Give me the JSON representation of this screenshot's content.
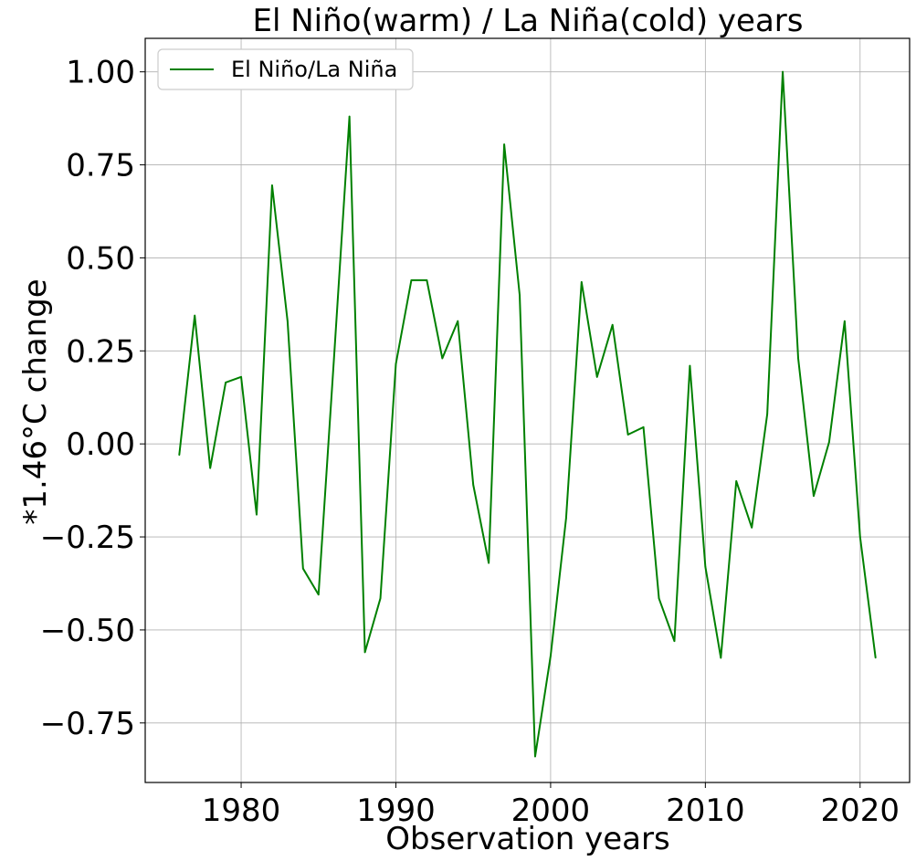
{
  "chart_data": {
    "type": "line",
    "title": "El Niño(warm) / La Niña(cold) years",
    "xlabel": "Observation years",
    "ylabel": "*1.46°C change",
    "xlim": [
      1973.8,
      2023.2
    ],
    "ylim": [
      -0.91,
      1.09
    ],
    "xticks": [
      1980,
      1990,
      2000,
      2010,
      2020
    ],
    "yticks": [
      -0.75,
      -0.5,
      -0.25,
      0.0,
      0.25,
      0.5,
      0.75,
      1.0
    ],
    "ytick_labels": [
      "−0.75",
      "−0.50",
      "−0.25",
      "0.00",
      "0.25",
      "0.50",
      "0.75",
      "1.00"
    ],
    "grid": true,
    "legend_position": "top-left",
    "series": [
      {
        "name": "El Niño/La Niña",
        "color": "#008000",
        "x": [
          1976,
          1977,
          1978,
          1979,
          1980,
          1981,
          1982,
          1983,
          1984,
          1985,
          1986,
          1987,
          1988,
          1989,
          1990,
          1991,
          1992,
          1993,
          1994,
          1995,
          1996,
          1997,
          1998,
          1999,
          2000,
          2001,
          2002,
          2003,
          2004,
          2005,
          2006,
          2007,
          2008,
          2009,
          2010,
          2011,
          2012,
          2013,
          2014,
          2015,
          2016,
          2017,
          2018,
          2019,
          2020,
          2021
        ],
        "y": [
          -0.03,
          0.345,
          -0.065,
          0.165,
          0.18,
          -0.19,
          0.695,
          0.33,
          -0.335,
          -0.405,
          0.23,
          0.88,
          -0.56,
          -0.415,
          0.215,
          0.44,
          0.44,
          0.23,
          0.33,
          -0.11,
          -0.32,
          0.805,
          0.4,
          -0.84,
          -0.57,
          -0.2,
          0.435,
          0.18,
          0.32,
          0.025,
          0.045,
          -0.415,
          -0.53,
          0.21,
          -0.33,
          -0.575,
          -0.1,
          -0.225,
          0.08,
          1.0,
          0.23,
          -0.14,
          0.005,
          0.33,
          -0.25,
          -0.575
        ]
      }
    ]
  }
}
